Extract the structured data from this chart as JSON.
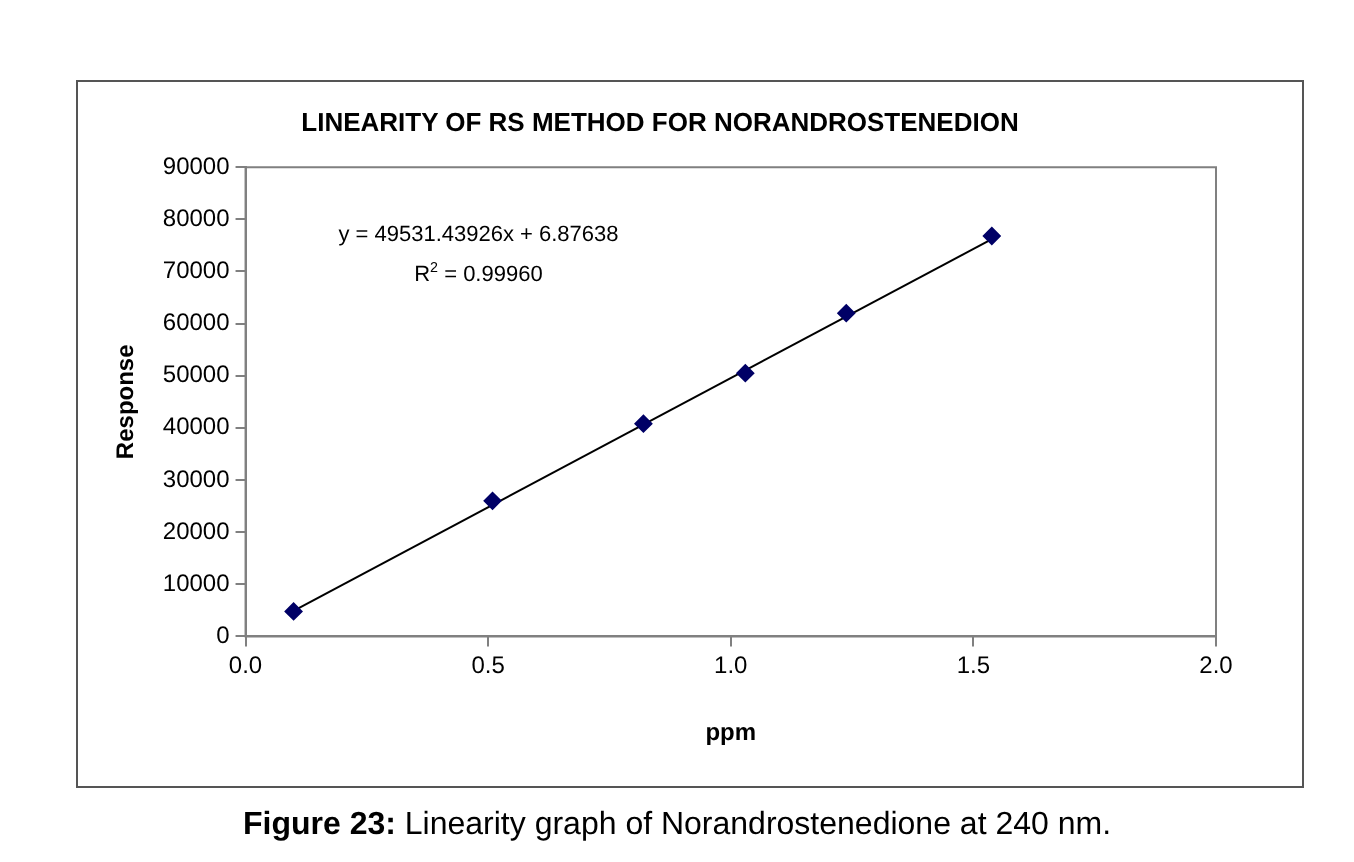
{
  "chart_data": {
    "type": "scatter",
    "title": "LINEARITY OF RS METHOD FOR NORANDROSTENEDION",
    "xlabel": "ppm",
    "ylabel": "Response",
    "x": [
      0.099,
      0.509,
      0.82,
      1.03,
      1.238,
      1.538
    ],
    "series": [
      {
        "color": "#000066",
        "values": [
          4800,
          26000,
          40800,
          50500,
          62000,
          76800
        ],
        "marker": "diamond"
      },
      {
        "type": "line",
        "color": "#000000",
        "x": [
          0.099,
          1.538
        ],
        "values": [
          4900,
          76200
        ],
        "marker": "none"
      }
    ],
    "xlim": [
      0,
      2
    ],
    "xticks": [
      {
        "value": 0,
        "label": "0.0"
      },
      {
        "value": 0.5,
        "label": "0.5"
      },
      {
        "value": 1,
        "label": "1.0"
      },
      {
        "value": 1.5,
        "label": "1.5"
      },
      {
        "value": 2,
        "label": "2.0"
      }
    ],
    "ylim": [
      0,
      90000
    ],
    "yticks": [
      0,
      10000,
      20000,
      30000,
      40000,
      50000,
      60000,
      70000,
      80000,
      90000
    ],
    "grid": false,
    "legend": false,
    "annotations": [
      "y = 49531.43926x + 6.87638",
      "R$^{2}$ = 0.99960",
      "Figure 23: Linearity graph of Norandrostenedione at 240 nm."
    ]
  }
}
